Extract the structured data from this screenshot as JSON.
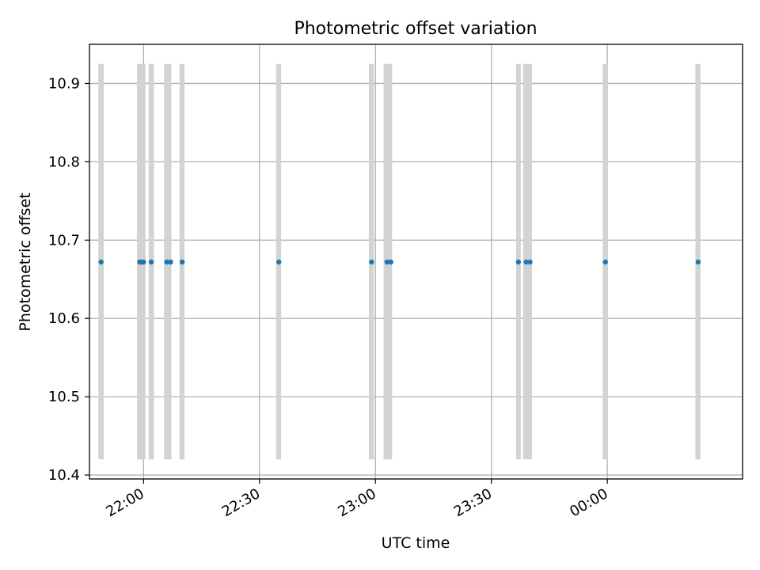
{
  "chart_data": {
    "type": "scatter",
    "title": "Photometric offset variation",
    "xlabel": "UTC time",
    "ylabel": "Photometric offset",
    "x_axis_type": "time",
    "xlim": [
      "21:46",
      "00:35"
    ],
    "ylim": [
      10.395,
      10.95
    ],
    "x_ticks": [
      "22:00",
      "22:30",
      "23:00",
      "23:30",
      "00:00"
    ],
    "y_ticks": [
      "10.4",
      "10.5",
      "10.6",
      "10.7",
      "10.8",
      "10.9"
    ],
    "grid": true,
    "colors": {
      "points": "#1f77b4",
      "bars": "#d3d3d3",
      "grid": "#b0b0b0",
      "frame": "#000000"
    },
    "series": [
      {
        "x": [
          "21:49",
          "21:59",
          "21:59.5",
          "22:00",
          "22:02",
          "22:06",
          "22:07",
          "22:10",
          "22:35",
          "22:59",
          "23:03",
          "23:04",
          "23:37",
          "23:39",
          "23:40",
          "23:59.5",
          "00:23.5"
        ],
        "y": [
          10.672,
          10.672,
          10.672,
          10.672,
          10.672,
          10.672,
          10.672,
          10.672,
          10.672,
          10.672,
          10.672,
          10.672,
          10.672,
          10.672,
          10.672,
          10.672,
          10.672
        ]
      }
    ],
    "shaded_spans": {
      "y_range": [
        10.42,
        10.925
      ],
      "intervals": [
        [
          "21:48.3",
          "21:49.7"
        ],
        [
          "21:58.3",
          "22:00.5"
        ],
        [
          "22:01.3",
          "22:02.7"
        ],
        [
          "22:05.3",
          "22:07.2"
        ],
        [
          "22:09.3",
          "22:10.6"
        ],
        [
          "22:34.3",
          "22:35.6"
        ],
        [
          "22:58.3",
          "22:59.6"
        ],
        [
          "23:02.1",
          "23:04.3"
        ],
        [
          "23:36.4",
          "23:37.6"
        ],
        [
          "23:38.2",
          "23:40.5"
        ],
        [
          "23:58.8",
          "00:00.1"
        ],
        [
          "00:22.8",
          "00:24.1"
        ]
      ]
    }
  }
}
